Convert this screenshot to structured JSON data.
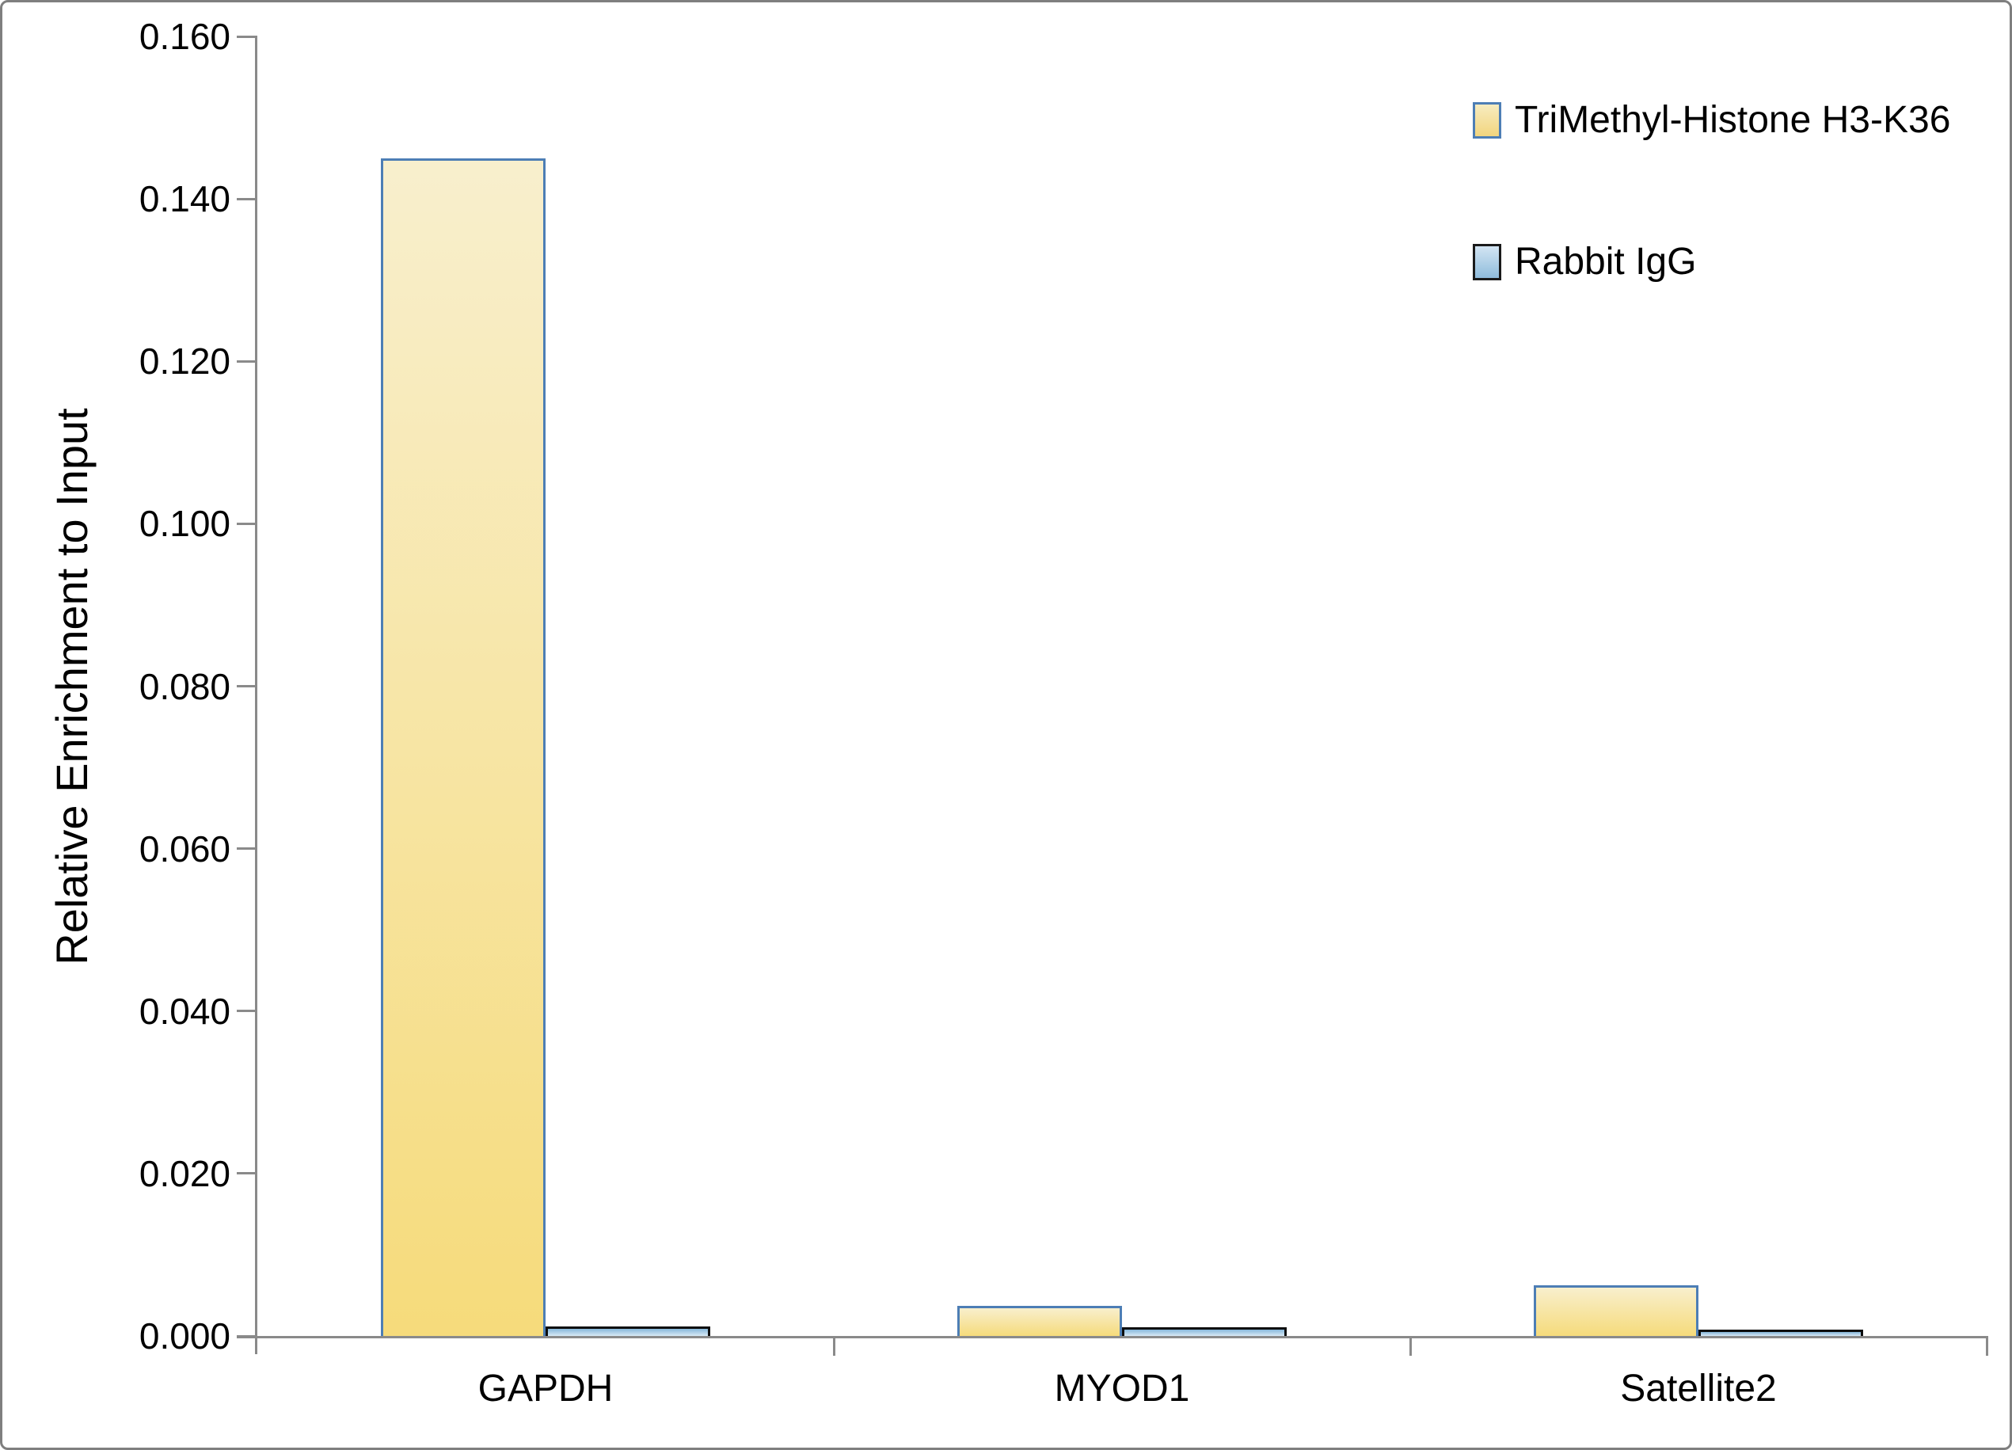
{
  "chart_data": {
    "type": "bar",
    "categories": [
      "GAPDH",
      "MYOD1",
      "Satellite2"
    ],
    "series": [
      {
        "name": "TriMethyl-Histone H3-K36",
        "values": [
          0.145,
          0.0037,
          0.0062
        ]
      },
      {
        "name": "Rabbit IgG",
        "values": [
          0.0012,
          0.0011,
          0.0008
        ]
      }
    ],
    "title": "",
    "xlabel": "",
    "ylabel": "Relative Enrichment to Input",
    "ylim": [
      0,
      0.16
    ],
    "ytick_step": 0.02,
    "ytick_labels": [
      "0.160",
      "0.140",
      "0.120",
      "0.100",
      "0.080",
      "0.060",
      "0.040",
      "0.020",
      "0.000"
    ],
    "grid": false,
    "legend_position": "top-right"
  },
  "colors": {
    "series1_fill_top": "#f8efcd",
    "series1_fill_bottom": "#f6db7b",
    "series1_border": "#4d7eb5",
    "series2_fill_top": "#86b7da",
    "series2_fill_bottom": "#d9eaf6",
    "series2_border": "#0d0d0d",
    "axis": "#8a8a8a",
    "frame_border": "#7f7f7f",
    "text": "#000000"
  }
}
